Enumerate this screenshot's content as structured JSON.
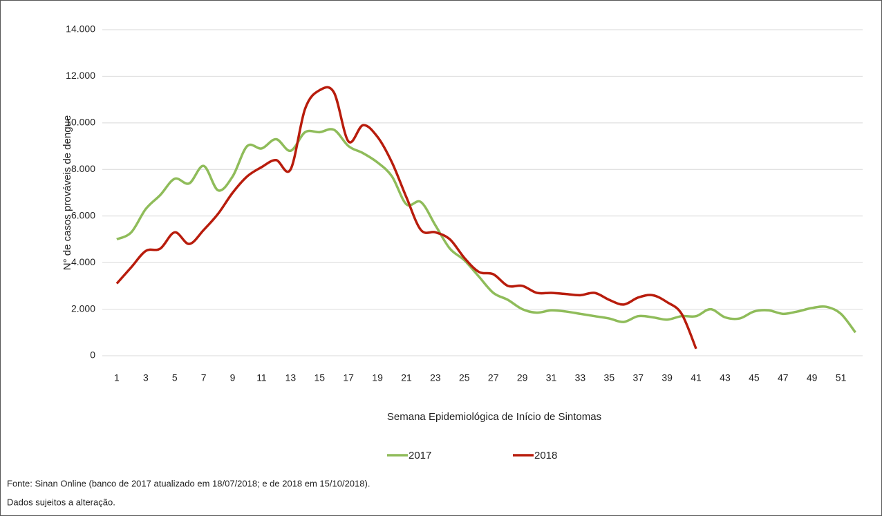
{
  "chart_data": {
    "type": "line",
    "y_label": "N° de casos prováveis de dengue",
    "x_label": "Semana Epidemiológica de Início de Sintomas",
    "x": [
      1,
      2,
      3,
      4,
      5,
      6,
      7,
      8,
      9,
      10,
      11,
      12,
      13,
      14,
      15,
      16,
      17,
      18,
      19,
      20,
      21,
      22,
      23,
      24,
      25,
      26,
      27,
      28,
      29,
      30,
      31,
      32,
      33,
      34,
      35,
      36,
      37,
      38,
      39,
      40,
      41,
      42,
      43,
      44,
      45,
      46,
      47,
      48,
      49,
      50,
      51,
      52
    ],
    "xlim": [
      0,
      52.5
    ],
    "xticks": [
      1,
      3,
      5,
      7,
      9,
      11,
      13,
      15,
      17,
      19,
      21,
      23,
      25,
      27,
      29,
      31,
      33,
      35,
      37,
      39,
      41,
      43,
      45,
      47,
      49,
      51
    ],
    "ylim": [
      0,
      14000
    ],
    "yticks": [
      0,
      {
        "value": 2000,
        "label": "2.000"
      },
      {
        "value": 4000,
        "label": "4.000"
      },
      {
        "value": 6000,
        "label": "6.000"
      },
      {
        "value": 8000,
        "label": "8.000"
      },
      {
        "value": 10000,
        "label": "10.000"
      },
      {
        "value": 12000,
        "label": "12.000"
      },
      {
        "value": 14000,
        "label": "14.000"
      }
    ],
    "grid": true,
    "series": [
      {
        "name": "2017",
        "color": "#8fbc5a",
        "values": [
          5000,
          5300,
          6300,
          6900,
          7600,
          7400,
          8150,
          7100,
          7700,
          9000,
          8900,
          9300,
          8800,
          9600,
          9600,
          9700,
          9000,
          8700,
          8300,
          7700,
          6500,
          6600,
          5600,
          4600,
          4100,
          3400,
          2700,
          2400,
          2000,
          1850,
          1950,
          1900,
          1800,
          1700,
          1600,
          1450,
          1700,
          1650,
          1550,
          1700,
          1700,
          2000,
          1650,
          1600,
          1900,
          1950,
          1800,
          1900,
          2050,
          2100,
          1800,
          1000
        ]
      },
      {
        "name": "2018",
        "color": "#b81c0c",
        "values": [
          3100,
          3800,
          4500,
          4600,
          5300,
          4800,
          5400,
          6100,
          7000,
          7700,
          8100,
          8400,
          8000,
          10600,
          11400,
          11300,
          9200,
          9900,
          9400,
          8300,
          6800,
          5400,
          5300,
          5000,
          4200,
          3600,
          3500,
          3000,
          3000,
          2700,
          2700,
          2650,
          2600,
          2700,
          2400,
          2200,
          2500,
          2600,
          2300,
          1800,
          300,
          null,
          null,
          null,
          null,
          null,
          null,
          null,
          null,
          null,
          null,
          null
        ]
      }
    ],
    "source": "Fonte: Sinan Online (banco de 2017 atualizado em 18/07/2018; e de 2018 em 15/10/2018).",
    "note": "Dados sujeitos a alteração."
  }
}
